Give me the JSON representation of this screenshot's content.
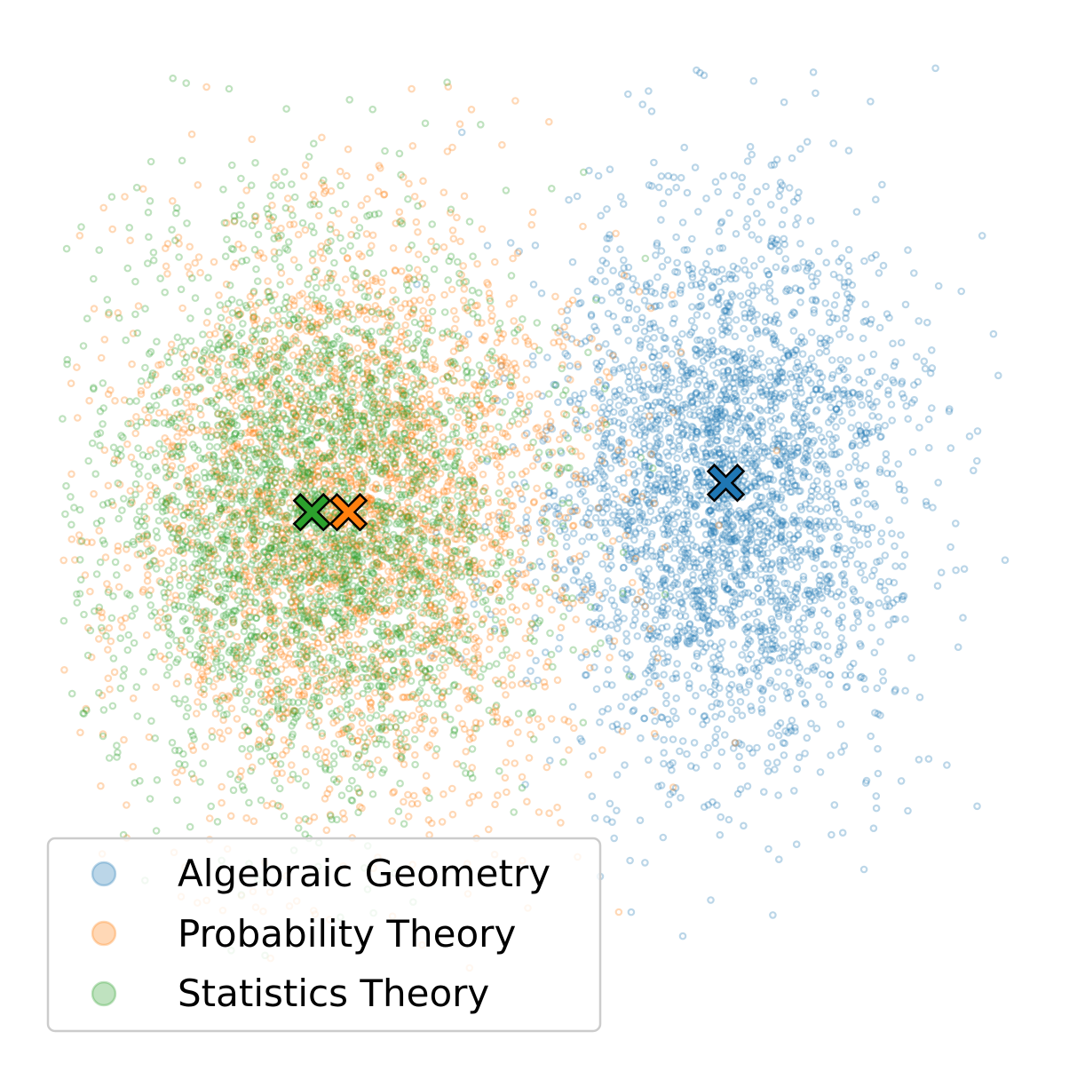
{
  "chart_data": {
    "type": "scatter",
    "title": "",
    "xlabel": "",
    "ylabel": "",
    "axes_visible": false,
    "grid": false,
    "xlim": [
      -4.2,
      4.6
    ],
    "ylim": [
      -4.8,
      4.1
    ],
    "legend_placement": "lower-left",
    "series": [
      {
        "name": "Algebraic Geometry",
        "color": "#1f77b4",
        "point_alpha": 0.3,
        "count": 3000,
        "center": [
          1.85,
          0.0
        ],
        "spread": [
          0.8,
          1.32
        ],
        "seed": 11
      },
      {
        "name": "Probability Theory",
        "color": "#ff7f0e",
        "point_alpha": 0.3,
        "count": 3000,
        "center": [
          -1.53,
          -0.28
        ],
        "spread": [
          1.02,
          1.36
        ],
        "seed": 23
      },
      {
        "name": "Statistics Theory",
        "color": "#2ca02c",
        "point_alpha": 0.3,
        "count": 3000,
        "center": [
          -1.85,
          -0.28
        ],
        "spread": [
          0.98,
          1.32
        ],
        "seed": 37
      }
    ],
    "centroids": [
      {
        "series": "Algebraic Geometry",
        "x": 1.86,
        "y": 0.0,
        "color": "#1f77b4"
      },
      {
        "series": "Probability Theory",
        "x": -1.54,
        "y": -0.28,
        "color": "#ff7f0e"
      },
      {
        "series": "Statistics Theory",
        "x": -1.87,
        "y": -0.28,
        "color": "#2ca02c"
      }
    ]
  }
}
